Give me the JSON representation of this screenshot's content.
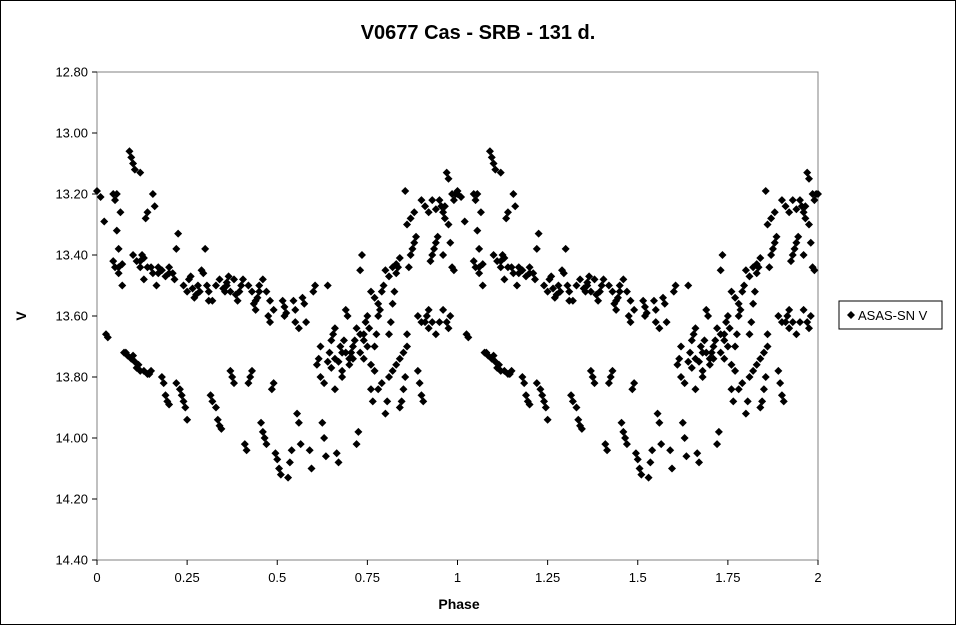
{
  "chart_data": {
    "type": "scatter",
    "title": "V0677 Cas - SRB - 131 d.",
    "xlabel": "Phase",
    "ylabel": "V",
    "xlim": [
      0,
      2
    ],
    "ylim": [
      12.8,
      14.4
    ],
    "y_inverted": true,
    "grid": false,
    "legend_placement": "right",
    "marker": "diamond",
    "marker_color": "#000000",
    "x_ticks": [
      "0",
      "0.25",
      "0.5",
      "0.75",
      "1",
      "1.25",
      "1.5",
      "1.75",
      "2"
    ],
    "x_tick_values": [
      0,
      0.25,
      0.5,
      0.75,
      1,
      1.25,
      1.5,
      1.75,
      2
    ],
    "y_ticks": [
      "12.80",
      "13.00",
      "13.20",
      "13.40",
      "13.60",
      "13.80",
      "14.00",
      "14.20",
      "14.40"
    ],
    "y_tick_values": [
      12.8,
      13.0,
      13.2,
      13.4,
      13.6,
      13.8,
      14.0,
      14.2,
      14.4
    ],
    "period_repeat": 1,
    "series": [
      {
        "name": "ASAS-SN V",
        "points": [
          [
            0.0,
            13.19
          ],
          [
            0.01,
            13.21
          ],
          [
            0.02,
            13.29
          ],
          [
            0.025,
            13.66
          ],
          [
            0.03,
            13.67
          ],
          [
            0.045,
            13.2
          ],
          [
            0.05,
            13.22
          ],
          [
            0.055,
            13.2
          ],
          [
            0.045,
            13.42
          ],
          [
            0.05,
            13.44
          ],
          [
            0.06,
            13.46
          ],
          [
            0.055,
            13.32
          ],
          [
            0.06,
            13.38
          ],
          [
            0.065,
            13.26
          ],
          [
            0.07,
            13.5
          ],
          [
            0.075,
            13.72
          ],
          [
            0.085,
            13.73
          ],
          [
            0.09,
            13.06
          ],
          [
            0.095,
            13.08
          ],
          [
            0.1,
            13.1
          ],
          [
            0.105,
            13.12
          ],
          [
            0.1,
            13.4
          ],
          [
            0.11,
            13.42
          ],
          [
            0.095,
            13.74
          ],
          [
            0.105,
            13.75
          ],
          [
            0.11,
            13.77
          ],
          [
            0.12,
            13.13
          ],
          [
            0.12,
            13.44
          ],
          [
            0.125,
            13.4
          ],
          [
            0.13,
            13.48
          ],
          [
            0.135,
            13.28
          ],
          [
            0.14,
            13.26
          ],
          [
            0.13,
            13.78
          ],
          [
            0.14,
            13.79
          ],
          [
            0.15,
            13.78
          ],
          [
            0.155,
            13.2
          ],
          [
            0.16,
            13.24
          ],
          [
            0.155,
            13.46
          ],
          [
            0.165,
            13.5
          ],
          [
            0.17,
            13.46
          ],
          [
            0.18,
            13.8
          ],
          [
            0.185,
            13.82
          ],
          [
            0.19,
            13.86
          ],
          [
            0.195,
            13.88
          ],
          [
            0.2,
            13.89
          ],
          [
            0.2,
            13.44
          ],
          [
            0.21,
            13.46
          ],
          [
            0.215,
            13.48
          ],
          [
            0.22,
            13.38
          ],
          [
            0.225,
            13.33
          ],
          [
            0.22,
            13.82
          ],
          [
            0.23,
            13.84
          ],
          [
            0.235,
            13.86
          ],
          [
            0.24,
            13.88
          ],
          [
            0.245,
            13.9
          ],
          [
            0.25,
            13.94
          ],
          [
            0.24,
            13.5
          ],
          [
            0.25,
            13.52
          ],
          [
            0.255,
            13.48
          ],
          [
            0.26,
            13.47
          ],
          [
            0.265,
            13.51
          ],
          [
            0.27,
            13.54
          ],
          [
            0.275,
            13.53
          ],
          [
            0.28,
            13.5
          ],
          [
            0.285,
            13.52
          ],
          [
            0.29,
            13.45
          ],
          [
            0.295,
            13.46
          ],
          [
            0.3,
            13.38
          ],
          [
            0.305,
            13.5
          ],
          [
            0.31,
            13.55
          ],
          [
            0.315,
            13.86
          ],
          [
            0.32,
            13.88
          ],
          [
            0.33,
            13.9
          ],
          [
            0.335,
            13.94
          ],
          [
            0.34,
            13.96
          ],
          [
            0.345,
            13.97
          ],
          [
            0.35,
            13.51
          ],
          [
            0.355,
            13.52
          ],
          [
            0.36,
            13.49
          ],
          [
            0.365,
            13.47
          ],
          [
            0.37,
            13.78
          ],
          [
            0.375,
            13.8
          ],
          [
            0.38,
            13.82
          ],
          [
            0.385,
            13.53
          ],
          [
            0.39,
            13.55
          ],
          [
            0.395,
            13.52
          ],
          [
            0.4,
            13.5
          ],
          [
            0.405,
            13.48
          ],
          [
            0.41,
            14.02
          ],
          [
            0.415,
            14.04
          ],
          [
            0.42,
            13.82
          ],
          [
            0.425,
            13.8
          ],
          [
            0.43,
            13.78
          ],
          [
            0.435,
            13.56
          ],
          [
            0.44,
            13.58
          ],
          [
            0.445,
            13.54
          ],
          [
            0.45,
            13.52
          ],
          [
            0.455,
            13.95
          ],
          [
            0.46,
            13.98
          ],
          [
            0.465,
            14.0
          ],
          [
            0.47,
            14.02
          ],
          [
            0.475,
            13.6
          ],
          [
            0.48,
            13.62
          ],
          [
            0.485,
            13.84
          ],
          [
            0.49,
            13.82
          ],
          [
            0.495,
            14.05
          ],
          [
            0.5,
            14.07
          ],
          [
            0.505,
            14.1
          ],
          [
            0.51,
            14.12
          ],
          [
            0.515,
            13.55
          ],
          [
            0.52,
            13.57
          ],
          [
            0.525,
            13.59
          ],
          [
            0.53,
            14.13
          ],
          [
            0.535,
            14.08
          ],
          [
            0.54,
            14.04
          ],
          [
            0.545,
            13.55
          ],
          [
            0.55,
            13.58
          ],
          [
            0.555,
            13.92
          ],
          [
            0.56,
            13.95
          ],
          [
            0.565,
            14.02
          ],
          [
            0.57,
            13.54
          ],
          [
            0.575,
            13.56
          ],
          [
            0.58,
            13.62
          ],
          [
            0.59,
            14.04
          ],
          [
            0.595,
            14.1
          ],
          [
            0.6,
            13.52
          ],
          [
            0.605,
            13.5
          ],
          [
            0.61,
            13.76
          ],
          [
            0.615,
            13.74
          ],
          [
            0.62,
            13.7
          ],
          [
            0.625,
            13.95
          ],
          [
            0.63,
            14.0
          ],
          [
            0.635,
            14.06
          ],
          [
            0.64,
            13.5
          ],
          [
            0.645,
            13.72
          ],
          [
            0.65,
            13.68
          ],
          [
            0.655,
            13.66
          ],
          [
            0.66,
            13.64
          ],
          [
            0.665,
            14.05
          ],
          [
            0.67,
            14.08
          ],
          [
            0.675,
            13.7
          ],
          [
            0.68,
            13.72
          ],
          [
            0.685,
            13.68
          ],
          [
            0.69,
            13.58
          ],
          [
            0.695,
            13.6
          ],
          [
            0.7,
            13.74
          ],
          [
            0.705,
            13.72
          ],
          [
            0.71,
            13.7
          ],
          [
            0.715,
            13.68
          ],
          [
            0.72,
            14.02
          ],
          [
            0.725,
            13.98
          ],
          [
            0.73,
            13.45
          ],
          [
            0.735,
            13.4
          ],
          [
            0.74,
            13.66
          ],
          [
            0.745,
            13.62
          ],
          [
            0.75,
            13.6
          ],
          [
            0.755,
            13.64
          ],
          [
            0.76,
            13.84
          ],
          [
            0.765,
            13.88
          ],
          [
            0.77,
            13.7
          ],
          [
            0.775,
            13.66
          ],
          [
            0.78,
            13.6
          ],
          [
            0.785,
            13.58
          ],
          [
            0.79,
            13.52
          ],
          [
            0.795,
            13.5
          ],
          [
            0.8,
            13.92
          ],
          [
            0.805,
            13.88
          ],
          [
            0.81,
            13.66
          ],
          [
            0.815,
            13.62
          ],
          [
            0.82,
            13.56
          ],
          [
            0.825,
            13.52
          ],
          [
            0.83,
            13.46
          ],
          [
            0.835,
            13.44
          ],
          [
            0.84,
            13.9
          ],
          [
            0.845,
            13.88
          ],
          [
            0.85,
            13.84
          ],
          [
            0.855,
            13.8
          ],
          [
            0.86,
            13.66
          ],
          [
            0.865,
            13.44
          ],
          [
            0.87,
            13.4
          ],
          [
            0.875,
            13.38
          ],
          [
            0.88,
            13.36
          ],
          [
            0.885,
            13.34
          ],
          [
            0.89,
            13.78
          ],
          [
            0.895,
            13.82
          ],
          [
            0.9,
            13.86
          ],
          [
            0.905,
            13.88
          ],
          [
            0.91,
            13.62
          ],
          [
            0.915,
            13.6
          ],
          [
            0.92,
            13.58
          ],
          [
            0.925,
            13.42
          ],
          [
            0.93,
            13.4
          ],
          [
            0.935,
            13.38
          ],
          [
            0.94,
            13.36
          ],
          [
            0.945,
            13.34
          ],
          [
            0.95,
            13.22
          ],
          [
            0.955,
            13.24
          ],
          [
            0.96,
            13.26
          ],
          [
            0.965,
            13.24
          ],
          [
            0.97,
            13.62
          ],
          [
            0.975,
            13.64
          ],
          [
            0.98,
            13.6
          ],
          [
            0.985,
            13.44
          ],
          [
            0.99,
            13.45
          ],
          [
            0.995,
            13.2
          ],
          [
            0.97,
            13.13
          ],
          [
            0.975,
            13.15
          ],
          [
            0.9,
            13.22
          ],
          [
            0.91,
            13.24
          ],
          [
            0.92,
            13.26
          ],
          [
            0.93,
            13.22
          ],
          [
            0.94,
            13.25
          ],
          [
            0.88,
            13.26
          ],
          [
            0.87,
            13.28
          ],
          [
            0.86,
            13.3
          ],
          [
            0.855,
            13.19
          ],
          [
            0.8,
            13.45
          ],
          [
            0.81,
            13.47
          ],
          [
            0.82,
            13.44
          ],
          [
            0.83,
            13.43
          ],
          [
            0.84,
            13.41
          ],
          [
            0.76,
            13.52
          ],
          [
            0.77,
            13.54
          ],
          [
            0.78,
            13.56
          ],
          [
            0.72,
            13.64
          ],
          [
            0.73,
            13.66
          ],
          [
            0.74,
            13.68
          ],
          [
            0.75,
            13.7
          ],
          [
            0.69,
            13.72
          ],
          [
            0.7,
            13.74
          ],
          [
            0.68,
            13.78
          ],
          [
            0.67,
            13.75
          ],
          [
            0.64,
            13.75
          ],
          [
            0.65,
            13.77
          ],
          [
            0.66,
            13.74
          ],
          [
            0.62,
            13.8
          ],
          [
            0.63,
            13.82
          ],
          [
            0.55,
            13.62
          ],
          [
            0.56,
            13.64
          ],
          [
            0.52,
            13.6
          ],
          [
            0.45,
            13.5
          ],
          [
            0.46,
            13.48
          ],
          [
            0.47,
            13.52
          ],
          [
            0.48,
            13.55
          ],
          [
            0.49,
            13.58
          ],
          [
            0.42,
            13.5
          ],
          [
            0.43,
            13.52
          ],
          [
            0.44,
            13.55
          ],
          [
            0.36,
            13.5
          ],
          [
            0.37,
            13.52
          ],
          [
            0.38,
            13.48
          ],
          [
            0.34,
            13.48
          ],
          [
            0.33,
            13.5
          ],
          [
            0.32,
            13.55
          ],
          [
            0.31,
            13.52
          ],
          [
            0.17,
            13.44
          ],
          [
            0.18,
            13.45
          ],
          [
            0.19,
            13.47
          ],
          [
            0.2,
            13.46
          ],
          [
            0.12,
            13.42
          ],
          [
            0.13,
            13.41
          ],
          [
            0.14,
            13.44
          ],
          [
            0.15,
            13.44
          ],
          [
            0.06,
            13.44
          ],
          [
            0.07,
            13.43
          ],
          [
            0.08,
            13.72
          ],
          [
            0.1,
            13.73
          ],
          [
            0.115,
            13.76
          ],
          [
            0.12,
            13.78
          ],
          [
            0.145,
            13.79
          ],
          [
            0.96,
            13.58
          ],
          [
            0.95,
            13.62
          ],
          [
            0.94,
            13.66
          ],
          [
            0.93,
            13.62
          ],
          [
            0.92,
            13.64
          ],
          [
            0.9,
            13.62
          ],
          [
            0.89,
            13.6
          ],
          [
            0.86,
            13.7
          ],
          [
            0.85,
            13.72
          ],
          [
            0.84,
            13.74
          ],
          [
            0.83,
            13.76
          ],
          [
            0.82,
            13.78
          ],
          [
            0.81,
            13.8
          ],
          [
            0.79,
            13.82
          ],
          [
            0.78,
            13.84
          ],
          [
            0.77,
            13.78
          ],
          [
            0.76,
            13.76
          ],
          [
            0.74,
            13.74
          ],
          [
            0.73,
            13.72
          ],
          [
            0.71,
            13.74
          ],
          [
            0.7,
            13.76
          ],
          [
            0.68,
            13.8
          ],
          [
            0.66,
            13.84
          ],
          [
            0.96,
            13.4
          ],
          [
            0.98,
            13.36
          ],
          [
            1.0,
            13.2
          ],
          [
            0.985,
            13.2
          ],
          [
            0.99,
            13.22
          ],
          [
            0.975,
            13.3
          ],
          [
            0.965,
            13.28
          ]
        ]
      }
    ]
  }
}
